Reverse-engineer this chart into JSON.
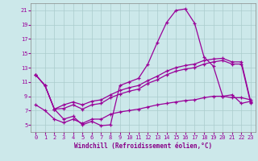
{
  "background_color": "#cce8ea",
  "grid_color": "#aacccc",
  "line_color": "#990099",
  "xlabel": "Windchill (Refroidissement éolien,°C)",
  "xlabel_color": "#880088",
  "xlim": [
    -0.5,
    23.5
  ],
  "ylim": [
    4,
    22
  ],
  "yticks": [
    5,
    7,
    9,
    11,
    13,
    15,
    17,
    19,
    21
  ],
  "xticks": [
    0,
    1,
    2,
    3,
    4,
    5,
    6,
    7,
    8,
    9,
    10,
    11,
    12,
    13,
    14,
    15,
    16,
    17,
    18,
    19,
    20,
    21,
    22,
    23
  ],
  "line1_x": [
    0,
    1,
    2,
    3,
    4,
    5,
    6,
    7,
    8,
    9,
    10,
    11,
    12,
    13,
    14,
    15,
    16,
    17,
    18,
    19,
    20,
    21,
    22,
    23
  ],
  "line1_y": [
    12.0,
    10.5,
    7.2,
    5.8,
    6.2,
    5.0,
    5.5,
    4.9,
    5.0,
    10.5,
    11.0,
    11.5,
    13.5,
    16.5,
    19.3,
    21.0,
    21.2,
    19.2,
    14.5,
    13.2,
    9.0,
    9.2,
    8.0,
    8.3
  ],
  "line2_x": [
    0,
    1,
    2,
    3,
    4,
    5,
    6,
    7,
    8,
    9,
    10,
    11,
    12,
    13,
    14,
    15,
    16,
    17,
    18,
    19,
    20,
    21,
    22,
    23
  ],
  "line2_y": [
    12.0,
    10.5,
    7.2,
    7.8,
    8.2,
    7.8,
    8.3,
    8.5,
    9.2,
    9.8,
    10.2,
    10.5,
    11.2,
    11.8,
    12.5,
    13.0,
    13.3,
    13.5,
    14.0,
    14.2,
    14.3,
    13.8,
    13.8,
    8.2
  ],
  "line3_x": [
    0,
    1,
    2,
    3,
    4,
    5,
    6,
    7,
    8,
    9,
    10,
    11,
    12,
    13,
    14,
    15,
    16,
    17,
    18,
    19,
    20,
    21,
    22,
    23
  ],
  "line3_y": [
    12.0,
    10.5,
    7.2,
    7.3,
    7.8,
    7.2,
    7.8,
    8.0,
    8.8,
    9.3,
    9.7,
    10.0,
    10.8,
    11.3,
    12.0,
    12.5,
    12.8,
    13.0,
    13.5,
    13.8,
    14.0,
    13.5,
    13.5,
    8.0
  ],
  "line4_x": [
    0,
    1,
    2,
    3,
    4,
    5,
    6,
    7,
    8,
    9,
    10,
    11,
    12,
    13,
    14,
    15,
    16,
    17,
    18,
    19,
    20,
    21,
    22,
    23
  ],
  "line4_y": [
    7.8,
    7.0,
    5.8,
    5.3,
    5.8,
    5.2,
    5.8,
    5.8,
    6.5,
    6.8,
    7.0,
    7.2,
    7.5,
    7.8,
    8.0,
    8.2,
    8.4,
    8.5,
    8.8,
    9.0,
    9.0,
    8.8,
    8.8,
    8.5
  ]
}
